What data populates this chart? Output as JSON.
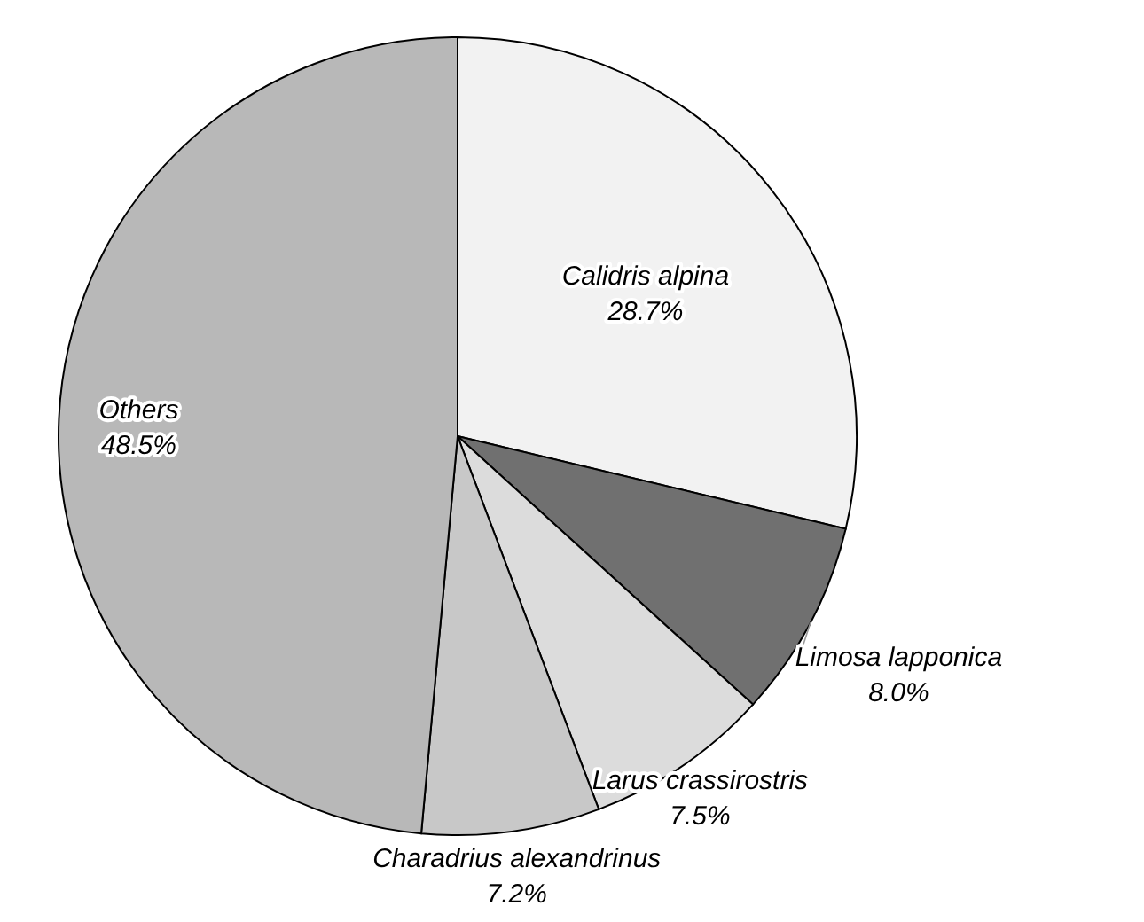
{
  "chart_data": {
    "type": "pie",
    "categories": [
      "Calidris alpina",
      "Limosa lapponica",
      "Larus crassirostris",
      "Charadrius alexandrinus",
      "Others"
    ],
    "values": [
      28.7,
      8.0,
      7.5,
      7.2,
      48.5
    ],
    "value_labels": [
      "28.7%",
      "8.0%",
      "7.5%",
      "7.2%",
      "48.5%"
    ],
    "colors": [
      "#f2f2f2",
      "#707070",
      "#dcdcdc",
      "#c8c8c8",
      "#b8b8b8"
    ]
  }
}
